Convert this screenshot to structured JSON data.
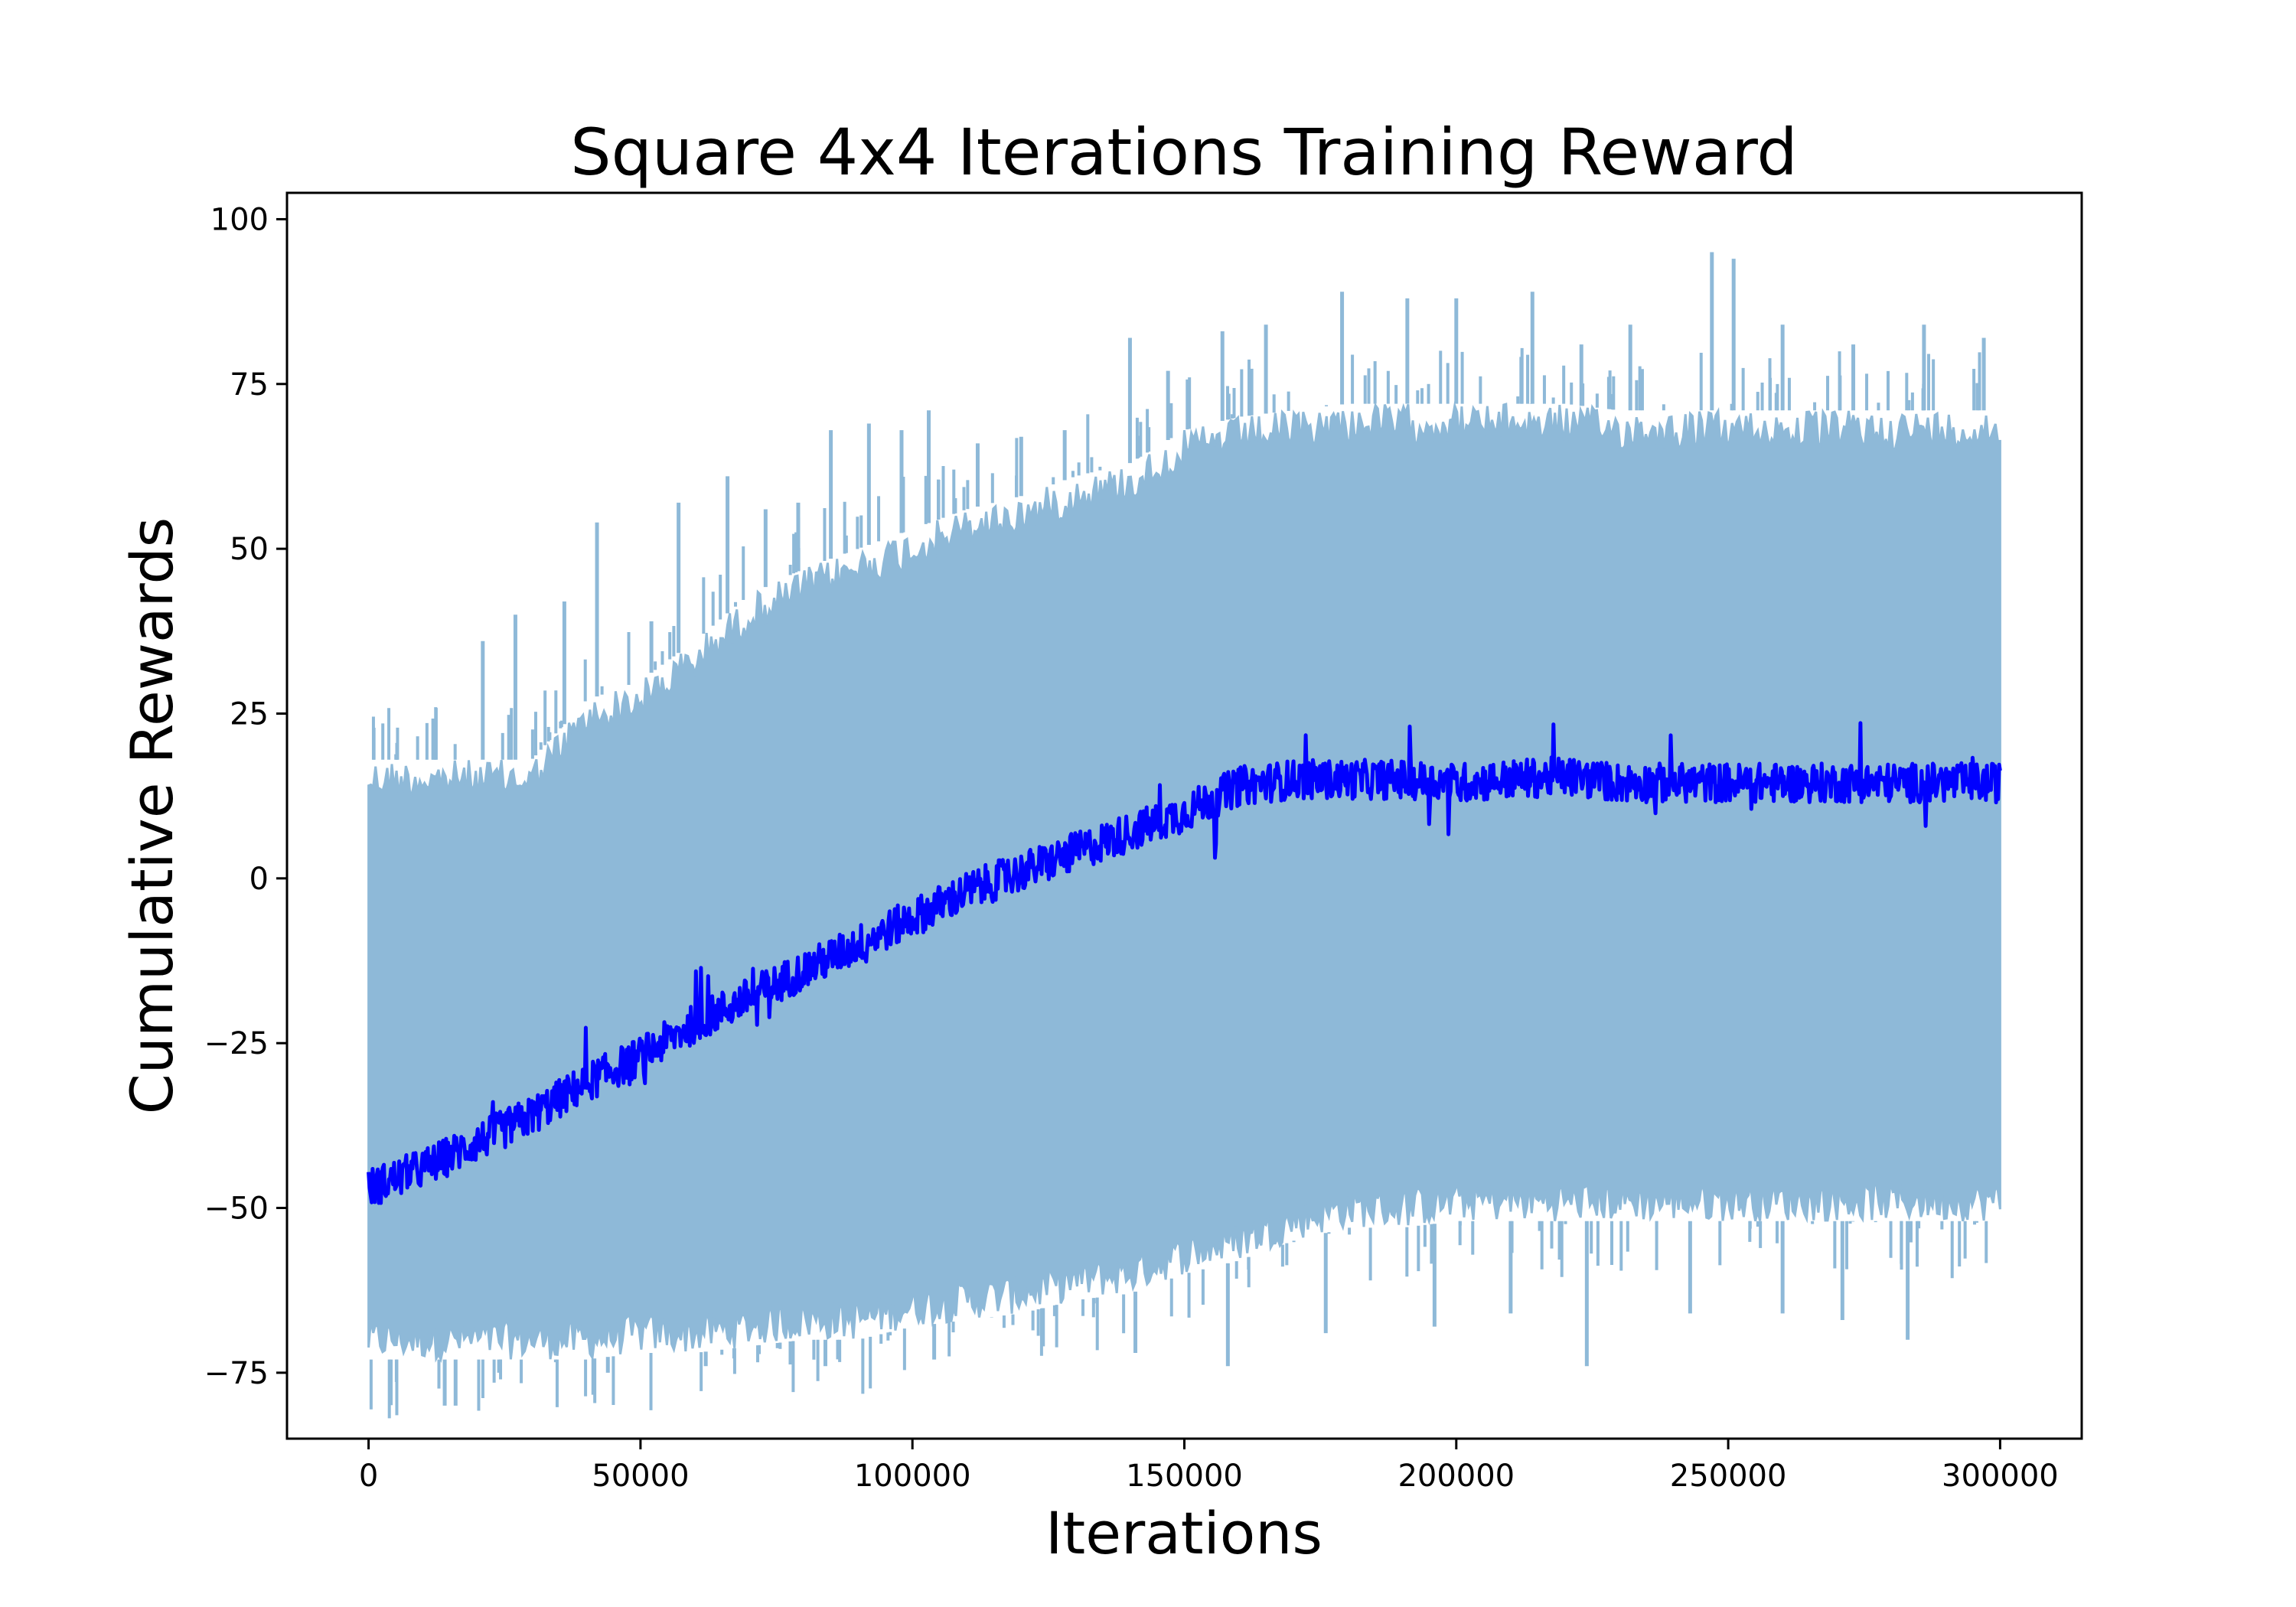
{
  "chart_data": {
    "type": "line",
    "title": "Square 4x4 Iterations Training Reward",
    "xlabel": "Iterations",
    "ylabel": "Cumulative Rewards",
    "xlim": [
      -15000,
      315000
    ],
    "ylim": [
      -85,
      104
    ],
    "xticks": [
      0,
      50000,
      100000,
      150000,
      200000,
      250000,
      300000
    ],
    "yticks": [
      -75,
      -50,
      -25,
      0,
      25,
      50,
      75,
      100
    ],
    "xtick_labels": [
      "0",
      "50000",
      "100000",
      "150000",
      "200000",
      "250000",
      "300000"
    ],
    "ytick_labels": [
      "−75",
      "−50",
      "−25",
      "0",
      "25",
      "50",
      "75",
      "100"
    ],
    "grid": false,
    "legend": "none",
    "series": [
      {
        "role": "raw",
        "color": "#8eb9d8",
        "x": [
          0,
          10000,
          20000,
          30000,
          40000,
          50000,
          60000,
          70000,
          80000,
          90000,
          100000,
          110000,
          120000,
          130000,
          140000,
          150000,
          160000,
          170000,
          180000,
          190000,
          200000,
          210000,
          220000,
          230000,
          240000,
          250000,
          260000,
          270000,
          280000,
          290000,
          300000
        ],
        "upper": [
          18,
          18,
          18,
          18,
          27,
          30,
          36,
          43,
          47,
          50,
          53,
          56,
          58,
          61,
          63,
          68,
          70,
          71,
          72,
          72,
          72,
          72,
          72,
          71,
          71,
          71,
          71,
          71,
          71,
          71,
          71
        ],
        "lower": [
          -73,
          -73,
          -73,
          -73,
          -73,
          -72,
          -72,
          -71,
          -70,
          -70,
          -68,
          -67,
          -66,
          -64,
          -63,
          -60,
          -58,
          -55,
          -53,
          -53,
          -52,
          -52,
          -52,
          -52,
          -52,
          -52,
          -52,
          -52,
          -52,
          -52,
          -52
        ],
        "spikes_high": [
          [
            12000,
            24
          ],
          [
            21000,
            36
          ],
          [
            27000,
            40
          ],
          [
            36000,
            42
          ],
          [
            42000,
            54
          ],
          [
            52000,
            39
          ],
          [
            57000,
            57
          ],
          [
            66000,
            61
          ],
          [
            73000,
            56
          ],
          [
            79000,
            57
          ],
          [
            85000,
            68
          ],
          [
            92000,
            69
          ],
          [
            98000,
            68
          ],
          [
            103000,
            71
          ],
          [
            112000,
            66
          ],
          [
            120000,
            67
          ],
          [
            128000,
            68
          ],
          [
            140000,
            82
          ],
          [
            147000,
            77
          ],
          [
            157000,
            83
          ],
          [
            165000,
            84
          ],
          [
            179000,
            89
          ],
          [
            191000,
            88
          ],
          [
            200000,
            88
          ],
          [
            214000,
            89
          ],
          [
            223000,
            81
          ],
          [
            232000,
            84
          ],
          [
            247000,
            95
          ],
          [
            251000,
            94
          ],
          [
            260000,
            84
          ],
          [
            273000,
            81
          ],
          [
            286000,
            84
          ],
          [
            297000,
            82
          ]
        ],
        "spikes_low": [
          [
            14000,
            -80
          ],
          [
            16000,
            -80
          ],
          [
            24000,
            -75
          ],
          [
            44000,
            -75
          ],
          [
            62000,
            -74
          ],
          [
            84000,
            -74
          ],
          [
            104000,
            -73
          ],
          [
            124000,
            -71
          ],
          [
            141000,
            -72
          ],
          [
            158000,
            -74
          ],
          [
            176000,
            -69
          ],
          [
            196000,
            -68
          ],
          [
            210000,
            -66
          ],
          [
            224000,
            -74
          ],
          [
            243000,
            -66
          ],
          [
            260000,
            -66
          ],
          [
            271000,
            -67
          ],
          [
            283000,
            -70
          ]
        ]
      },
      {
        "role": "smoothed",
        "color": "#0000ff",
        "x": [
          0,
          10000,
          20000,
          30000,
          40000,
          50000,
          60000,
          70000,
          80000,
          90000,
          100000,
          110000,
          120000,
          130000,
          140000,
          150000,
          160000,
          170000,
          180000,
          190000,
          200000,
          210000,
          220000,
          230000,
          240000,
          250000,
          260000,
          270000,
          280000,
          290000,
          300000
        ],
        "y": [
          -47,
          -44,
          -40,
          -36,
          -31,
          -27,
          -22,
          -18,
          -14,
          -10,
          -6,
          -2,
          1,
          4,
          7,
          10,
          14,
          15,
          15,
          15,
          14.5,
          15,
          15.5,
          14.5,
          14.5,
          14.5,
          14.5,
          14.5,
          14.5,
          14.5,
          14.5
        ]
      }
    ]
  }
}
